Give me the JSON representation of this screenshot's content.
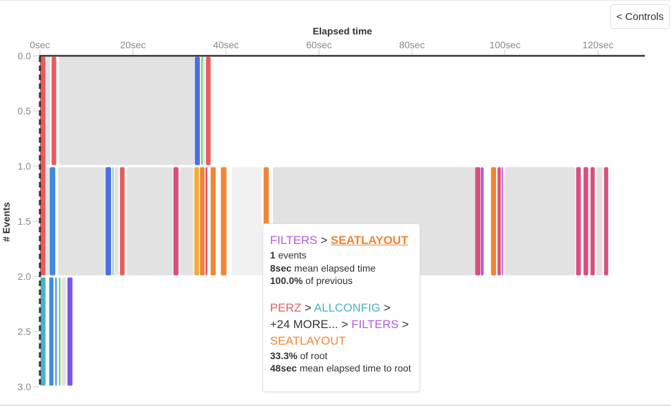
{
  "controls_label": "< Controls",
  "chart_data": {
    "type": "bar",
    "xlabel": "Elapsed time",
    "ylabel": "# Events",
    "xlim": [
      0,
      130
    ],
    "ylim": [
      0,
      3
    ],
    "x_ticks": [
      "0sec",
      "20sec",
      "40sec",
      "60sec",
      "80sec",
      "100sec",
      "120sec"
    ],
    "x_tick_values": [
      0,
      20,
      40,
      60,
      80,
      100,
      120
    ],
    "y_ticks": [
      "0.0",
      "0.5",
      "1.0",
      "1.5",
      "2.0",
      "2.5",
      "3.0"
    ],
    "y_tick_values": [
      0,
      0.5,
      1,
      1.5,
      2,
      2.5,
      3
    ],
    "segments": [
      {
        "row": [
          0,
          2
        ],
        "x": [
          0,
          1.2
        ],
        "color": "#e85d5d"
      },
      {
        "row": [
          0,
          1
        ],
        "x": [
          1.3,
          2.2
        ],
        "color": "#e2e2e2"
      },
      {
        "row": [
          0,
          1
        ],
        "x": [
          2.5,
          3.5
        ],
        "color": "#e85d5d"
      },
      {
        "row": [
          0,
          1
        ],
        "x": [
          4.1,
          33.2
        ],
        "color": "#e2e2e2"
      },
      {
        "row": [
          0,
          1
        ],
        "x": [
          33.3,
          34.4
        ],
        "color": "#4a6fe8"
      },
      {
        "row": [
          0,
          1
        ],
        "x": [
          34.7,
          35.0
        ],
        "color": "#6cc46c"
      },
      {
        "row": [
          0,
          1
        ],
        "x": [
          35.1,
          35.5
        ],
        "color": "#e2e2e2"
      },
      {
        "row": [
          0,
          1
        ],
        "x": [
          35.7,
          36.7
        ],
        "color": "#e85d5d"
      },
      {
        "row": [
          1,
          2
        ],
        "x": [
          1.3,
          2.0
        ],
        "color": "#e2e2e2"
      },
      {
        "row": [
          1,
          2
        ],
        "x": [
          2.1,
          3.3
        ],
        "color": "#3c8be0"
      },
      {
        "row": [
          1,
          2
        ],
        "x": [
          3.9,
          14.0
        ],
        "color": "#e2e2e2"
      },
      {
        "row": [
          1,
          2
        ],
        "x": [
          14.1,
          15.3
        ],
        "color": "#4a6fe8"
      },
      {
        "row": [
          1,
          2
        ],
        "x": [
          15.6,
          15.8
        ],
        "color": "#6cc46c"
      },
      {
        "row": [
          1,
          2
        ],
        "x": [
          16.0,
          16.9
        ],
        "color": "#e2e2e2"
      },
      {
        "row": [
          1,
          2
        ],
        "x": [
          17.2,
          18.2
        ],
        "color": "#e85d5d"
      },
      {
        "row": [
          1,
          2
        ],
        "x": [
          18.7,
          28.5
        ],
        "color": "#e2e2e2"
      },
      {
        "row": [
          1,
          2
        ],
        "x": [
          28.7,
          29.8
        ],
        "color": "#d94f7c"
      },
      {
        "row": [
          1,
          2
        ],
        "x": [
          30.2,
          33.0
        ],
        "color": "#e2e2e2"
      },
      {
        "row": [
          1,
          2
        ],
        "x": [
          33.2,
          34.2
        ],
        "color": "#f0ab3c"
      },
      {
        "row": [
          1,
          2
        ],
        "x": [
          34.4,
          35.4
        ],
        "color": "#f08536"
      },
      {
        "row": [
          1,
          2
        ],
        "x": [
          35.6,
          36.0
        ],
        "color": "#d94f7c"
      },
      {
        "row": [
          1,
          2
        ],
        "x": [
          36.7,
          37.8
        ],
        "color": "#f08536"
      },
      {
        "row": [
          1,
          2
        ],
        "x": [
          38.9,
          40.1
        ],
        "color": "#f08536"
      },
      {
        "row": [
          1,
          2
        ],
        "x": [
          41.2,
          47.7
        ],
        "color": "#f1f1f1"
      },
      {
        "row": [
          1,
          2
        ],
        "x": [
          48.1,
          49.2
        ],
        "color": "#f08536"
      },
      {
        "row": [
          1,
          2
        ],
        "x": [
          50.1,
          93.6
        ],
        "color": "#e2e2e2"
      },
      {
        "row": [
          1,
          2
        ],
        "x": [
          93.6,
          94.7
        ],
        "color": "#d94f7c"
      },
      {
        "row": [
          1,
          2
        ],
        "x": [
          94.8,
          95.4
        ],
        "color": "#b05ae0"
      },
      {
        "row": [
          1,
          2
        ],
        "x": [
          97.0,
          98.1
        ],
        "color": "#f08536"
      },
      {
        "row": [
          1,
          2
        ],
        "x": [
          98.4,
          99.1
        ],
        "color": "#d94f7c"
      },
      {
        "row": [
          1,
          2
        ],
        "x": [
          99.3,
          99.6
        ],
        "color": "#b05ae0"
      },
      {
        "row": [
          1,
          2
        ],
        "x": [
          99.9,
          115.1
        ],
        "color": "#e2e2e2"
      },
      {
        "row": [
          1,
          2
        ],
        "x": [
          115.3,
          116.3
        ],
        "color": "#d94f7c"
      },
      {
        "row": [
          1,
          2
        ],
        "x": [
          116.9,
          117.9
        ],
        "color": "#d94f7c"
      },
      {
        "row": [
          1,
          2
        ],
        "x": [
          118.4,
          119.3
        ],
        "color": "#d94f7c"
      },
      {
        "row": [
          1,
          2
        ],
        "x": [
          119.7,
          121.0
        ],
        "color": "#e2e2e2"
      },
      {
        "row": [
          1,
          2
        ],
        "x": [
          121.3,
          122.2
        ],
        "color": "#d94f7c"
      },
      {
        "row": [
          2,
          3
        ],
        "x": [
          0.1,
          1.2
        ],
        "color": "#4bb3c4"
      },
      {
        "row": [
          2,
          3
        ],
        "x": [
          2.0,
          2.9
        ],
        "color": "#3c8be0"
      },
      {
        "row": [
          2,
          3
        ],
        "x": [
          3.3,
          3.6
        ],
        "color": "#3c8be0"
      },
      {
        "row": [
          2,
          3
        ],
        "x": [
          4.1,
          4.4
        ],
        "color": "#6cc46c"
      },
      {
        "row": [
          2,
          3
        ],
        "x": [
          4.7,
          5.6
        ],
        "color": "#e2e2e2"
      },
      {
        "row": [
          2,
          3
        ],
        "x": [
          5.9,
          7.0
        ],
        "color": "#7a55e8"
      }
    ]
  },
  "tooltip": {
    "path_prev": "FILTERS",
    "sep": ">",
    "path_current": "SEATLAYOUT",
    "events_value": "1",
    "events_label": "events",
    "mean_value": "8sec",
    "mean_label": "mean elapsed time",
    "prev_value": "100.0%",
    "prev_label": "of previous",
    "root_path": [
      "PERZ",
      "ALLCONFIG",
      "+24 MORE...",
      "FILTERS",
      "SEATLAYOUT"
    ],
    "root_pct_value": "33.3%",
    "root_pct_label": "of root",
    "root_mean_value": "48sec",
    "root_mean_label": "mean elapsed time to root",
    "colors": {
      "FILTERS": "#b05ae0",
      "SEATLAYOUT": "#f08536",
      "PERZ": "#e85d5d",
      "ALLCONFIG": "#4bb3c4"
    }
  }
}
